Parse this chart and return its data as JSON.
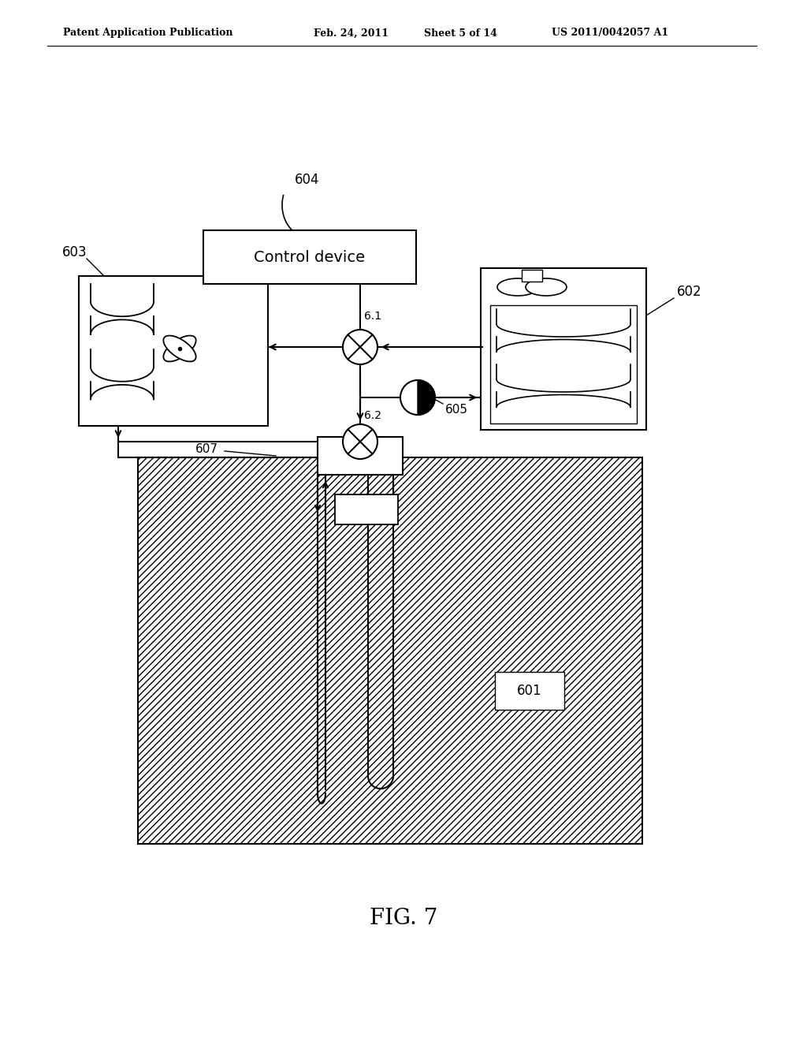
{
  "bg_color": "#ffffff",
  "lc": "#000000",
  "header_text": "Patent Application Publication",
  "header_date": "Feb. 24, 2011",
  "header_sheet": "Sheet 5 of 14",
  "header_patent": "US 2011/0042057 A1",
  "fig_label": "FIG. 7"
}
